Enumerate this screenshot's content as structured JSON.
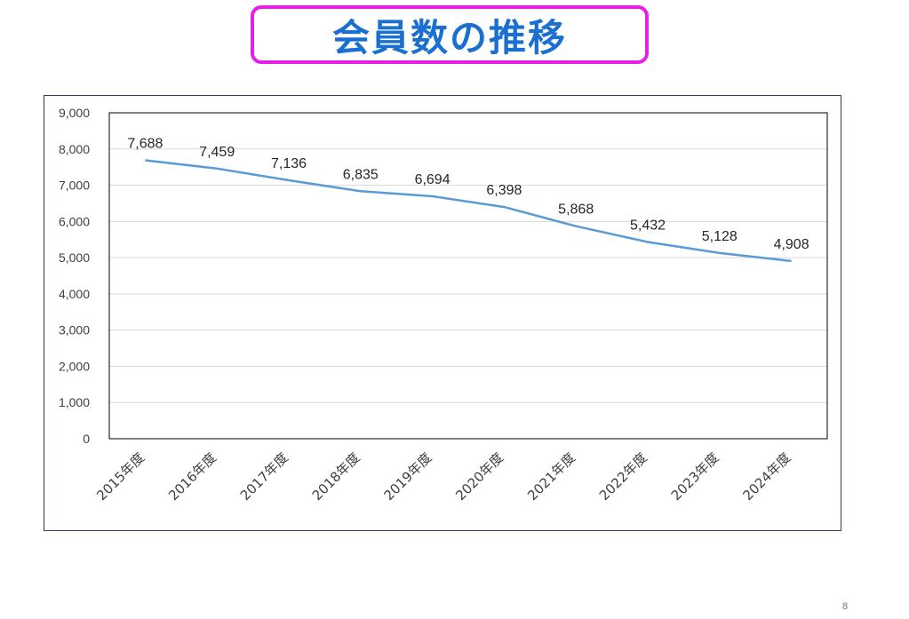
{
  "title": "会員数の推移",
  "page_number": "8",
  "colors": {
    "title_text": "#1a6fd1",
    "title_border": "#e61ee6",
    "line": "#5b9bd5",
    "frame": "#2b3f66",
    "grid": "#d9d9d9"
  },
  "chart_data": {
    "type": "line",
    "categories": [
      "2015年度",
      "2016年度",
      "2017年度",
      "2018年度",
      "2019年度",
      "2020年度",
      "2021年度",
      "2022年度",
      "2023年度",
      "2024年度"
    ],
    "series": [
      {
        "values": [
          7688,
          7459,
          7136,
          6835,
          6694,
          6398,
          5868,
          5432,
          5128,
          4908
        ],
        "data_labels": [
          "7,688",
          "7,459",
          "7,136",
          "6,835",
          "6,694",
          "6,398",
          "5,868",
          "5,432",
          "5,128",
          "4,908"
        ]
      }
    ],
    "y_ticks": [
      "0",
      "1,000",
      "2,000",
      "3,000",
      "4,000",
      "5,000",
      "6,000",
      "7,000",
      "8,000",
      "9,000"
    ],
    "ylim": [
      0,
      9000
    ],
    "grid": true,
    "legend": "none"
  }
}
